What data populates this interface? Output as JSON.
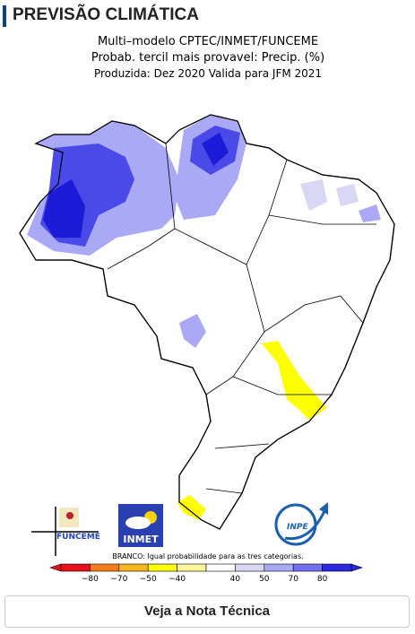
{
  "header": {
    "title": "PREVISÃO CLIMÁTICA"
  },
  "map": {
    "title_lines": [
      "Multi–modelo CPTEC/INMET/FUNCEME",
      "Probab. tercil mais provavel: Precip. (%)",
      "Produzida: Dez 2020  Valida para JFM 2021"
    ],
    "logos": [
      "FUNCEME",
      "INMET",
      "INPE"
    ],
    "legend_note": "BRANCO: Igual probabilidade para as tres categorias.",
    "colorbar": {
      "colors": [
        "#e8101a",
        "#f47a1c",
        "#f7b51e",
        "#ffff00",
        "#fff59a",
        "#ffffff",
        "#d8d8f5",
        "#a9a9f5",
        "#7070f0",
        "#2a2ae0"
      ],
      "labels": [
        "−80",
        "−70",
        "−50",
        "−40",
        "40",
        "50",
        "70",
        "80"
      ]
    }
  },
  "button": {
    "label": "Veja a Nota Técnica"
  }
}
